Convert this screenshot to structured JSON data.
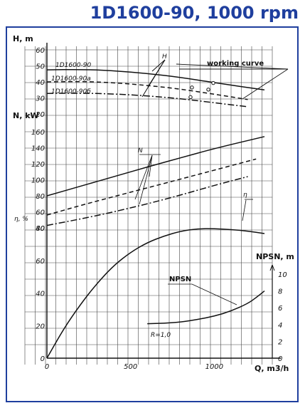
{
  "title": "1D1600-90, 1000 rpm",
  "chart_data": {
    "type": "line",
    "title": "1D1600-90, 1000 rpm",
    "xlabel": "Q, m3/h",
    "x_ticks": [
      0,
      500,
      1000
    ],
    "xlim": [
      0,
      1300
    ],
    "axes": {
      "head": {
        "label": "H, m",
        "ylim": [
          20,
          60
        ],
        "ticks": [
          20,
          30,
          40,
          50,
          60
        ]
      },
      "power": {
        "label": "N, kW",
        "ylim": [
          40,
          160
        ],
        "ticks": [
          40,
          60,
          80,
          100,
          120,
          140,
          160
        ]
      },
      "efficiency": {
        "label": "η, %",
        "ylim": [
          0,
          80
        ],
        "ticks": [
          0,
          20,
          40,
          60,
          80
        ]
      },
      "npsh": {
        "label": "NPSN, m",
        "ylim": [
          0,
          10
        ],
        "ticks": [
          0,
          2,
          4,
          6,
          8,
          10
        ]
      }
    },
    "series": [
      {
        "name": "1D1600-90",
        "axis": "head",
        "style": "solid",
        "x": [
          0,
          200,
          400,
          600,
          800,
          1000,
          1300
        ],
        "y": [
          47.5,
          47.8,
          47,
          45.3,
          42.8,
          39.5,
          35
        ]
      },
      {
        "name": "1D1600-90a",
        "axis": "head",
        "style": "dashed",
        "x": [
          0,
          200,
          400,
          600,
          800,
          1000,
          1200
        ],
        "y": [
          40,
          40.3,
          39.5,
          37.8,
          35.5,
          32.3,
          29
        ]
      },
      {
        "name": "1D1600-90б",
        "axis": "head",
        "style": "dashdot",
        "x": [
          0,
          200,
          400,
          600,
          800,
          1000,
          1200
        ],
        "y": [
          32.8,
          33,
          32.5,
          31.3,
          29.5,
          27,
          24.5
        ]
      },
      {
        "name": "N",
        "axis": "power",
        "style": "solid",
        "x": [
          0,
          200,
          400,
          600,
          800,
          1000,
          1300
        ],
        "y": [
          80,
          92,
          104,
          116,
          127.5,
          139,
          154
        ]
      },
      {
        "name": "N",
        "axis": "power",
        "style": "dashed",
        "x": [
          0,
          200,
          400,
          600,
          800,
          1000,
          1250
        ],
        "y": [
          56,
          68,
          79,
          90,
          101,
          112,
          126
        ]
      },
      {
        "name": "N",
        "axis": "power",
        "style": "dashdot",
        "x": [
          0,
          200,
          400,
          600,
          800,
          1000,
          1200
        ],
        "y": [
          43,
          51,
          60,
          70,
          81,
          93,
          104
        ]
      },
      {
        "name": "η",
        "axis": "efficiency",
        "style": "solid",
        "x": [
          0,
          100,
          200,
          300,
          400,
          500,
          600,
          700,
          800,
          900,
          1000,
          1100,
          1200,
          1300
        ],
        "y": [
          0,
          18,
          33,
          46,
          57,
          65,
          71,
          75,
          78,
          79.5,
          79.5,
          79,
          78,
          76.5
        ]
      },
      {
        "name": "NPSN",
        "axis": "npsh",
        "style": "solid",
        "x": [
          600,
          700,
          800,
          900,
          1000,
          1100,
          1200,
          1250,
          1300
        ],
        "y": [
          4.1,
          4.15,
          4.3,
          4.6,
          5.0,
          5.6,
          6.5,
          7.2,
          8.0
        ]
      }
    ],
    "annotations": {
      "h_label": "H",
      "working_curve": "working curve",
      "n_label": "N",
      "eta_label": "η",
      "npsn_label": "NPSN",
      "r_label": "R=1,0"
    }
  }
}
